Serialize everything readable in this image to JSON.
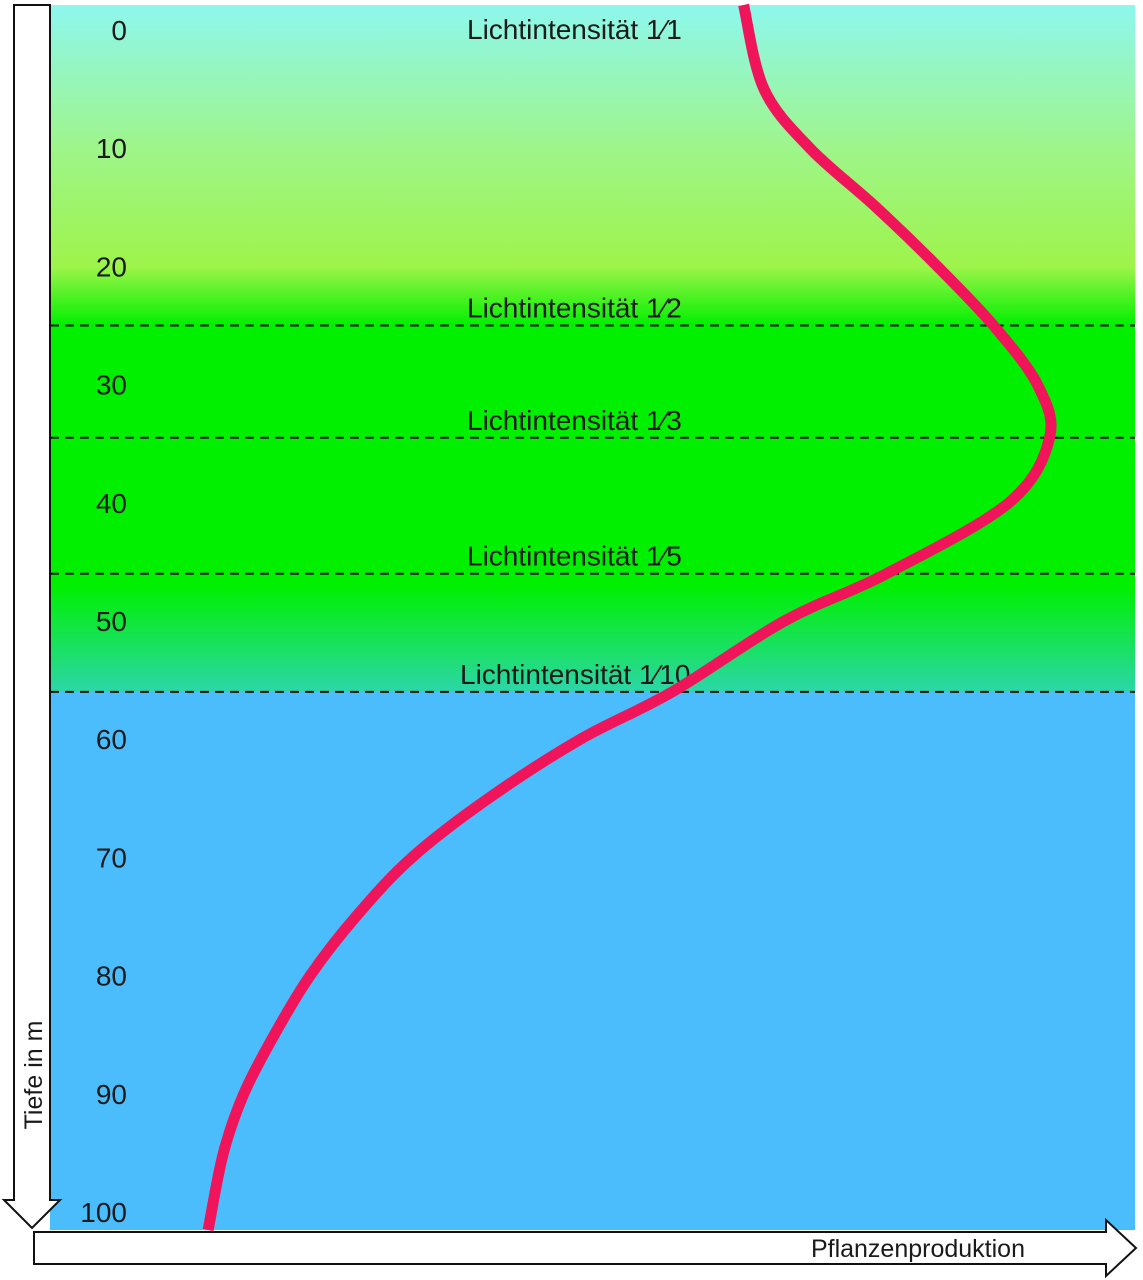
{
  "chart_data": {
    "type": "line",
    "title": "",
    "ylabel": "Tiefe in m",
    "xlabel": "Pflanzenproduktion",
    "ylim": [
      0,
      100
    ],
    "y_inverted": true,
    "yticks": [
      "0",
      "10",
      "20",
      "30",
      "40",
      "50",
      "60",
      "70",
      "80",
      "90",
      "100"
    ],
    "background_bands": [
      {
        "from": 0,
        "to": 20,
        "colors": [
          "#8ef7ee",
          "#9ef58a",
          "#9ef44a"
        ]
      },
      {
        "from": 20,
        "to": 25,
        "colors": [
          "#9ef44a",
          "#00f000"
        ]
      },
      {
        "from": 25,
        "to": 47,
        "colors": [
          "#00f000"
        ]
      },
      {
        "from": 47,
        "to": 56,
        "colors": [
          "#00f000",
          "#2cd6a8"
        ]
      },
      {
        "from": 56,
        "to": 100,
        "colors": [
          "#4cbdfc"
        ]
      }
    ],
    "light_levels": [
      {
        "depth": 0,
        "label": "Lichtintensität",
        "fraction": "1⁄1",
        "dashed_line": false
      },
      {
        "depth": 25,
        "label": "Lichtintensität",
        "fraction": "1⁄2",
        "dashed_line": true
      },
      {
        "depth": 34.5,
        "label": "Lichtintensität",
        "fraction": "1⁄3",
        "dashed_line": true
      },
      {
        "depth": 46,
        "label": "Lichtintensität",
        "fraction": "1⁄5",
        "dashed_line": true
      },
      {
        "depth": 56,
        "label": "Lichtintensität",
        "fraction": "1⁄10",
        "dashed_line": true
      }
    ],
    "series": [
      {
        "color": "#f0145a",
        "points": [
          {
            "depth": 0,
            "production": 0.68
          },
          {
            "depth": 5,
            "production": 0.7
          },
          {
            "depth": 10,
            "production": 0.745
          },
          {
            "depth": 15,
            "production": 0.81
          },
          {
            "depth": 20,
            "production": 0.87
          },
          {
            "depth": 25,
            "production": 0.925
          },
          {
            "depth": 30,
            "production": 0.968
          },
          {
            "depth": 34.5,
            "production": 0.98
          },
          {
            "depth": 40,
            "production": 0.94
          },
          {
            "depth": 46,
            "production": 0.82
          },
          {
            "depth": 50,
            "production": 0.72
          },
          {
            "depth": 56,
            "production": 0.61
          },
          {
            "depth": 60,
            "production": 0.52
          },
          {
            "depth": 65,
            "production": 0.43
          },
          {
            "depth": 70,
            "production": 0.355
          },
          {
            "depth": 75,
            "production": 0.3
          },
          {
            "depth": 80,
            "production": 0.255
          },
          {
            "depth": 85,
            "production": 0.22
          },
          {
            "depth": 90,
            "production": 0.19
          },
          {
            "depth": 95,
            "production": 0.17
          },
          {
            "depth": 100,
            "production": 0.155
          }
        ]
      }
    ]
  }
}
